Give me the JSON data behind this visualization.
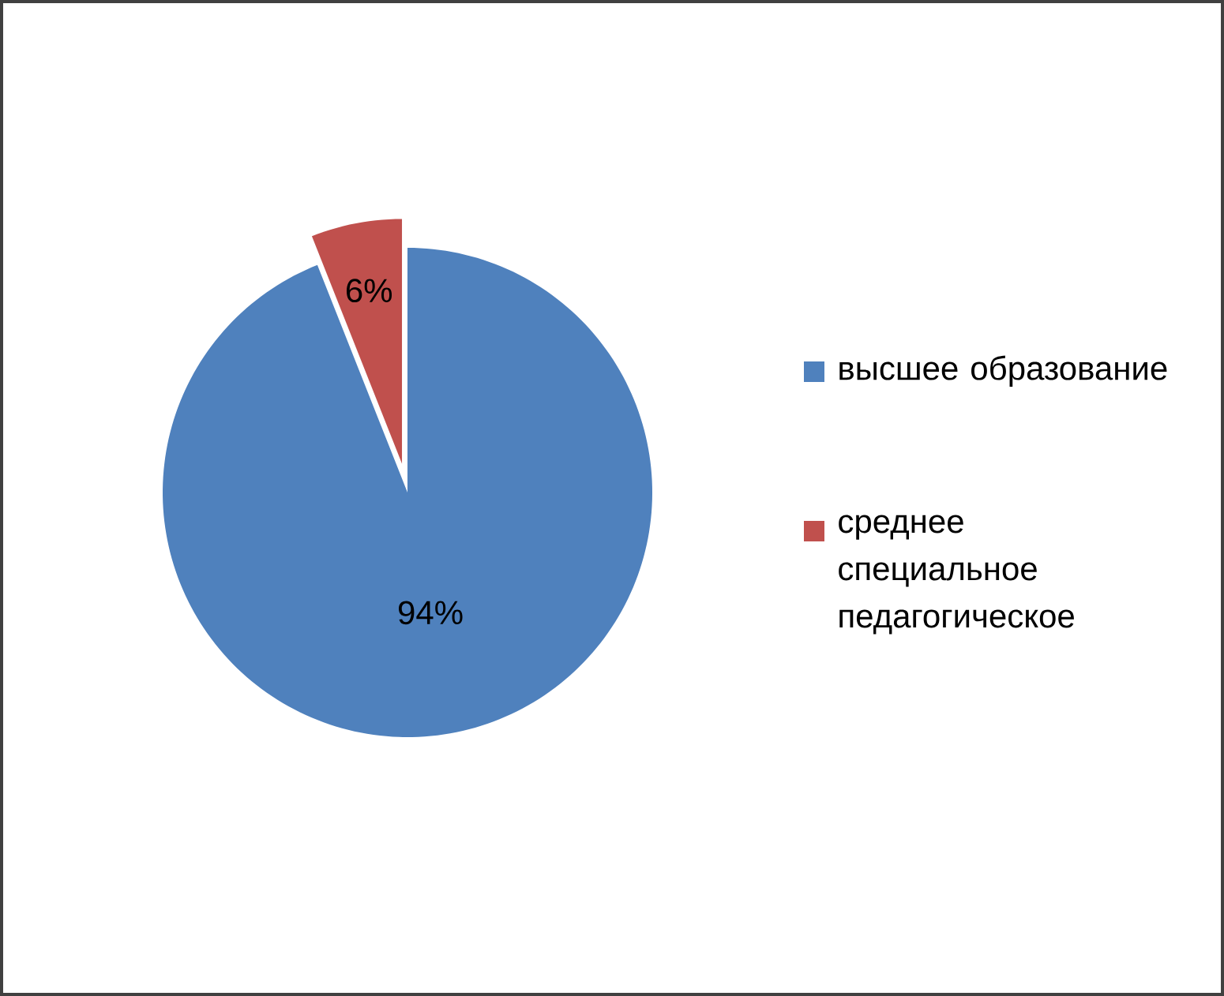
{
  "chart_data": {
    "type": "pie",
    "categories": [
      "высшее образование",
      "среднее специальное педагогическое"
    ],
    "values": [
      94,
      6
    ],
    "colors": [
      "#4f81bd",
      "#c0504d"
    ],
    "value_labels": [
      "94%",
      "6%"
    ],
    "legend": "right"
  }
}
